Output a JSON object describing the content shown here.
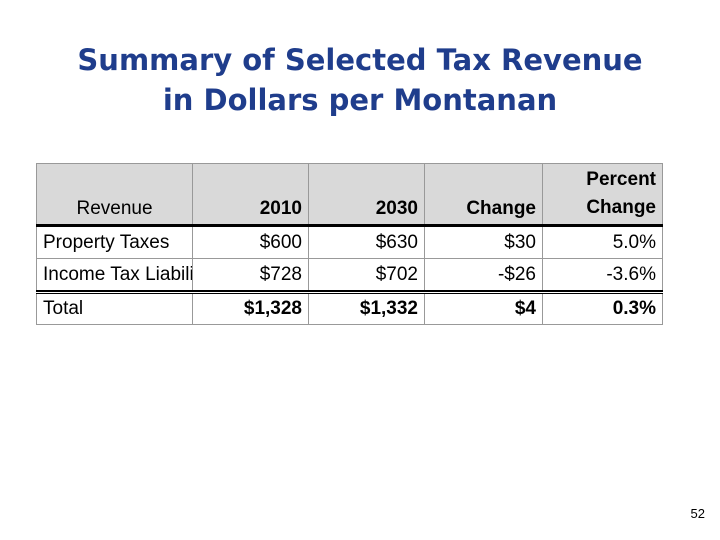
{
  "slide": {
    "title_line1": "Summary of Selected Tax Revenue",
    "title_line2": "in Dollars per Montanan",
    "page_number": "52"
  },
  "table": {
    "headers": {
      "label": "Revenue",
      "y2010": "2010",
      "y2030": "2030",
      "change": "Change",
      "pct_line1": "Percent",
      "pct_line2": "Change"
    },
    "rows": [
      {
        "label": "Property Taxes",
        "y2010": "$600",
        "y2030": "$630",
        "change": "$30",
        "pct": "5.0%"
      },
      {
        "label": "Income Tax Liability",
        "y2010": "$728",
        "y2030": "$702",
        "change": "-$26",
        "pct": "-3.6%"
      }
    ],
    "total": {
      "label": "Total",
      "y2010": "$1,328",
      "y2030": "$1,332",
      "change": "$4",
      "pct": "0.3%"
    }
  },
  "colors": {
    "title": "#1f3d8c",
    "header_fill": "#d9d9d9"
  }
}
